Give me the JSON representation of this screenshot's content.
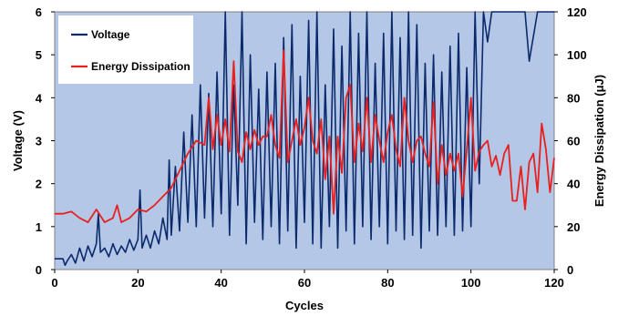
{
  "chart_data": {
    "type": "line",
    "title": "",
    "xlabel": "Cycles",
    "ylabel": "Voltage (V)",
    "y2label": "Energy Dissipation (μJ)",
    "xlim": [
      0,
      120
    ],
    "ylim": [
      0,
      6
    ],
    "y2lim": [
      0,
      120
    ],
    "xticks": [
      0,
      20,
      40,
      60,
      80,
      100,
      120
    ],
    "yticks": [
      0,
      1,
      2,
      3,
      4,
      5,
      6
    ],
    "y2ticks": [
      0,
      20,
      40,
      60,
      80,
      100,
      120
    ],
    "grid": false,
    "legend_position": "top-left",
    "plot_background": "#b4c7e7",
    "series": [
      {
        "name": "Voltage",
        "axis": "left",
        "color": "#0b2a6b",
        "x": [
          0,
          1,
          2,
          2.5,
          3,
          4,
          5,
          6,
          7,
          8,
          9,
          10,
          10.5,
          11,
          12,
          13,
          14,
          15,
          16,
          17,
          18,
          19,
          20,
          20.5,
          21,
          22,
          23,
          24,
          25,
          26,
          27,
          27.5,
          28,
          29,
          30,
          31,
          32,
          33,
          34,
          35,
          36,
          37,
          38,
          39,
          40,
          41,
          42,
          43,
          44,
          45,
          46,
          47,
          48,
          49,
          50,
          51,
          52,
          53,
          54,
          55,
          56,
          57,
          58,
          59,
          60,
          61,
          62,
          63,
          64,
          65,
          66,
          67,
          68,
          69,
          70,
          71,
          72,
          73,
          74,
          75,
          76,
          77,
          78,
          79,
          80,
          81,
          82,
          83,
          84,
          85,
          86,
          87,
          88,
          89,
          90,
          91,
          92,
          93,
          94,
          95,
          96,
          97,
          98,
          99,
          100,
          101,
          102,
          103,
          104,
          105,
          108,
          112,
          113,
          114,
          116,
          120
        ],
        "values": [
          0.25,
          0.25,
          0.25,
          0.1,
          0.2,
          0.35,
          0.15,
          0.5,
          0.2,
          0.55,
          0.3,
          0.6,
          1.3,
          0.4,
          0.5,
          0.3,
          0.6,
          0.35,
          0.55,
          0.4,
          0.7,
          0.45,
          0.7,
          1.85,
          0.5,
          0.8,
          0.5,
          0.9,
          0.6,
          1.2,
          0.7,
          2.55,
          0.8,
          2.4,
          0.9,
          3.2,
          1.1,
          3.6,
          1.0,
          4.3,
          1.2,
          4.1,
          1.0,
          4.6,
          1.3,
          6.0,
          0.8,
          4.3,
          1.5,
          6.0,
          0.6,
          5.0,
          1.1,
          4.2,
          0.7,
          4.6,
          1.0,
          4.8,
          0.6,
          5.4,
          0.9,
          5.7,
          0.5,
          4.5,
          1.1,
          5.8,
          0.6,
          6.0,
          0.5,
          4.3,
          1.0,
          5.6,
          0.5,
          5.2,
          0.9,
          6.0,
          0.6,
          5.5,
          1.0,
          6.0,
          0.7,
          4.8,
          1.0,
          5.5,
          0.6,
          6.0,
          0.9,
          5.4,
          0.7,
          6.0,
          0.8,
          5.7,
          0.5,
          4.8,
          0.9,
          5.0,
          0.8,
          4.6,
          1.0,
          5.2,
          0.8,
          5.5,
          0.9,
          4.7,
          1.0,
          6.0,
          2.0,
          6.0,
          5.3,
          6.0,
          6.0,
          6.0,
          6.0,
          4.85,
          6.0,
          6.0
        ]
      },
      {
        "name": "Energy Dissipation",
        "axis": "right",
        "color": "#e8201e",
        "x": [
          0,
          2,
          4,
          6,
          8,
          10,
          12,
          14,
          15,
          16,
          18,
          20,
          22,
          24,
          26,
          28,
          30,
          32,
          34,
          36,
          37,
          38,
          39,
          40,
          41,
          42,
          43,
          44,
          45,
          46,
          47,
          48,
          49,
          50,
          51,
          52,
          53,
          54,
          55,
          56,
          57,
          58,
          59,
          60,
          61,
          62,
          63,
          64,
          65,
          66,
          67,
          68,
          69,
          70,
          71,
          72,
          73,
          74,
          75,
          76,
          77,
          78,
          79,
          80,
          81,
          82,
          83,
          84,
          85,
          86,
          87,
          88,
          89,
          90,
          91,
          92,
          93,
          94,
          95,
          96,
          97,
          98,
          99,
          100,
          101,
          102,
          103,
          104,
          105,
          106,
          107,
          108,
          109,
          110,
          111,
          112,
          113,
          114,
          115,
          116,
          117,
          118,
          119,
          120
        ],
        "values": [
          26,
          26,
          27,
          24,
          22,
          28,
          22,
          24,
          30,
          22,
          24,
          28,
          27,
          30,
          34,
          38,
          46,
          54,
          60,
          58,
          80,
          56,
          72,
          58,
          70,
          55,
          97,
          55,
          50,
          64,
          56,
          65,
          58,
          62,
          62,
          72,
          58,
          52,
          102,
          50,
          60,
          70,
          58,
          66,
          80,
          60,
          54,
          70,
          42,
          62,
          26,
          62,
          45,
          80,
          86,
          50,
          68,
          55,
          80,
          50,
          72,
          60,
          50,
          64,
          72,
          56,
          48,
          80,
          60,
          50,
          60,
          62,
          54,
          48,
          78,
          40,
          58,
          44,
          54,
          46,
          54,
          34,
          56,
          80,
          46,
          55,
          58,
          60,
          48,
          53,
          44,
          54,
          58,
          32,
          32,
          48,
          28,
          50,
          54,
          36,
          68,
          56,
          36,
          52
        ]
      }
    ]
  }
}
